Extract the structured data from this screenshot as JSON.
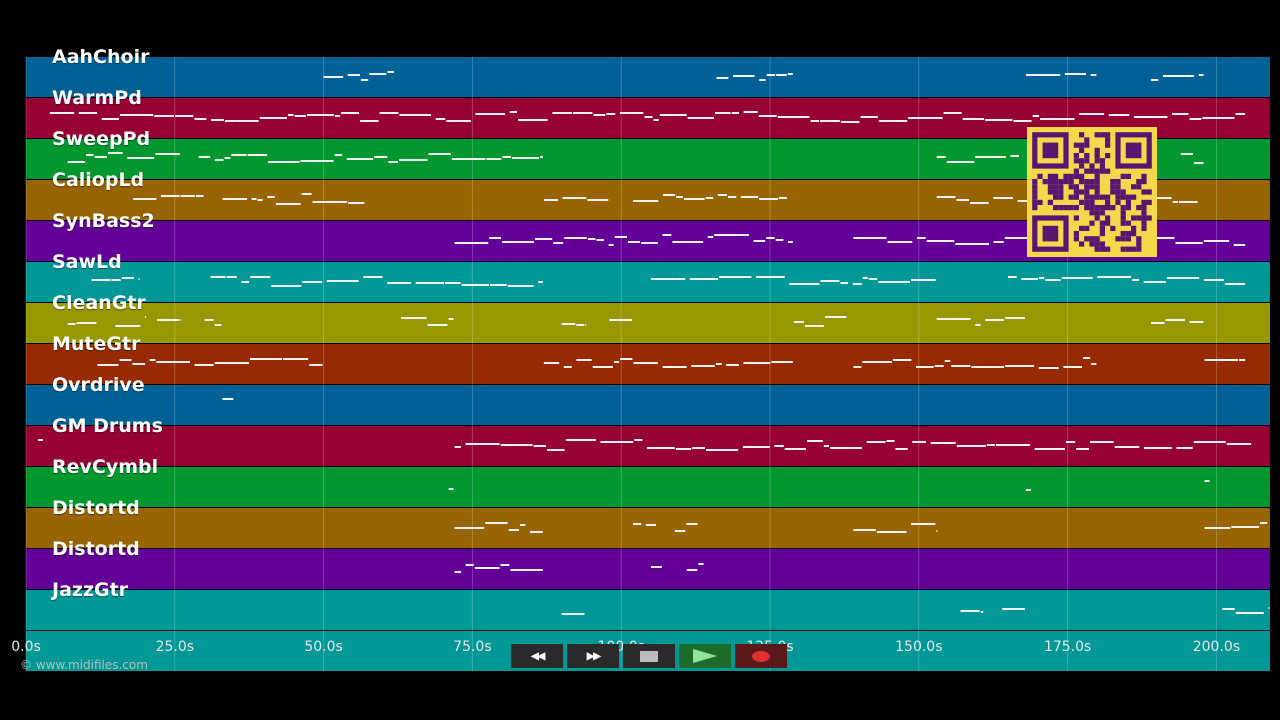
{
  "lanes": [
    {
      "name": "AahChoir",
      "color": "#006197"
    },
    {
      "name": "WarmPd",
      "color": "#970032"
    },
    {
      "name": "SweepPd",
      "color": "#00972e"
    },
    {
      "name": "CaliopLd",
      "color": "#976400"
    },
    {
      "name": "SynBass2",
      "color": "#630097"
    },
    {
      "name": "SawLd",
      "color": "#009797"
    },
    {
      "name": "CleanGtr",
      "color": "#979700"
    },
    {
      "name": "MuteGtr",
      "color": "#972a00"
    },
    {
      "name": "Ovrdrive",
      "color": "#006197"
    },
    {
      "name": "GM Drums",
      "color": "#970032"
    },
    {
      "name": "RevCymbl",
      "color": "#00972e"
    },
    {
      "name": "Distortd",
      "color": "#976400"
    },
    {
      "name": "Distortd",
      "color": "#630097"
    },
    {
      "name": "JazzGtr",
      "color": "#009797"
    },
    {
      "name": "",
      "color": "#009797"
    }
  ],
  "timeline": {
    "ticks": [
      "0.0s",
      "25.0s",
      "50.0s",
      "75.0s",
      "100.0s",
      "125.0s",
      "150.0s",
      "175.0s",
      "200.0s"
    ],
    "max_seconds": 209
  },
  "copyright": "© www.midifiles.com",
  "transport": {
    "rewind": "◀◀",
    "forward": "▶▶",
    "stop_icon": "stop-icon",
    "play_icon": "play-icon",
    "record_icon": "record-icon"
  },
  "notes": [
    {
      "lane": 0,
      "segs": [
        [
          50,
          62
        ],
        [
          116,
          129
        ],
        [
          168,
          180
        ],
        [
          189,
          198
        ]
      ]
    },
    {
      "lane": 1,
      "segs": [
        [
          4,
          205
        ]
      ]
    },
    {
      "lane": 2,
      "segs": [
        [
          7,
          26
        ],
        [
          29,
          87
        ],
        [
          153,
          167
        ],
        [
          194,
          198
        ]
      ]
    },
    {
      "lane": 3,
      "segs": [
        [
          18,
          30
        ],
        [
          33,
          57
        ],
        [
          87,
          98
        ],
        [
          102,
          128
        ],
        [
          153,
          197
        ]
      ]
    },
    {
      "lane": 4,
      "segs": [
        [
          72,
          129
        ],
        [
          139,
          205
        ]
      ]
    },
    {
      "lane": 5,
      "segs": [
        [
          11,
          19
        ],
        [
          31,
          87
        ],
        [
          105,
          153
        ],
        [
          165,
          205
        ]
      ]
    },
    {
      "lane": 6,
      "segs": [
        [
          7,
          12
        ],
        [
          15,
          20
        ],
        [
          22,
          26
        ],
        [
          30,
          33
        ],
        [
          63,
          72
        ],
        [
          90,
          94
        ],
        [
          98,
          102
        ],
        [
          129,
          138
        ],
        [
          153,
          168
        ],
        [
          189,
          198
        ]
      ]
    },
    {
      "lane": 7,
      "segs": [
        [
          12,
          50
        ],
        [
          87,
          129
        ],
        [
          139,
          180
        ],
        [
          198,
          205
        ]
      ]
    },
    {
      "lane": 8,
      "segs": [
        [
          33,
          35
        ]
      ]
    },
    {
      "lane": 9,
      "segs": [
        [
          2,
          3
        ],
        [
          72,
          206
        ]
      ]
    },
    {
      "lane": 10,
      "segs": [
        [
          71,
          72
        ],
        [
          168,
          169
        ],
        [
          198,
          199
        ]
      ]
    },
    {
      "lane": 11,
      "segs": [
        [
          72,
          87
        ],
        [
          102,
          106
        ],
        [
          109,
          113
        ],
        [
          139,
          153
        ],
        [
          198,
          209
        ]
      ]
    },
    {
      "lane": 12,
      "segs": [
        [
          72,
          87
        ],
        [
          105,
          107
        ],
        [
          111,
          114
        ]
      ]
    },
    {
      "lane": 13,
      "segs": [
        [
          90,
          94
        ],
        [
          157,
          161
        ],
        [
          164,
          168
        ],
        [
          201,
          209
        ]
      ]
    }
  ]
}
